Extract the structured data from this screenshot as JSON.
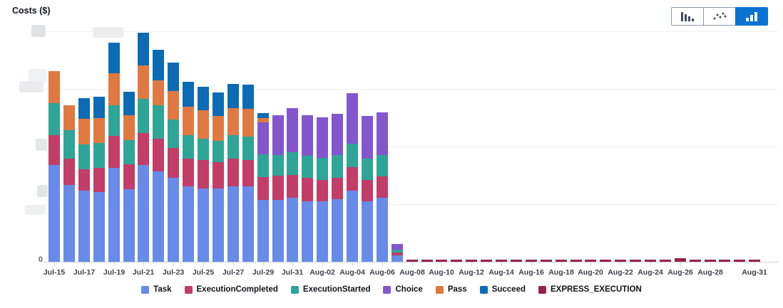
{
  "header": {
    "title": "Costs ($)"
  },
  "toolbar": {
    "active_color": "#0972d3",
    "buttons": [
      {
        "icon": "bar-chart-icon",
        "active": false
      },
      {
        "icon": "scatter-chart-icon",
        "active": false
      },
      {
        "icon": "stacked-bar-chart-icon",
        "active": true
      }
    ]
  },
  "y_axis": {
    "visible_tick_label": "0",
    "note": "all other y-axis tick labels are blurred/redacted in the screenshot"
  },
  "chart_data": {
    "type": "bar",
    "stacked": true,
    "title": "Costs ($)",
    "xlabel": "",
    "ylabel": "Costs ($)",
    "grid": "horizontal gridlines on, y tick labels redacted except 0",
    "legend_position": "bottom",
    "units": "pixel heights measured from screenshot (1 gridline interval = 81 px); absolute $ values not readable because y-axis labels are blurred",
    "categories": [
      "Jul-15",
      "Jul-16",
      "Jul-17",
      "Jul-18",
      "Jul-19",
      "Jul-20",
      "Jul-21",
      "Jul-22",
      "Jul-23",
      "Jul-24",
      "Jul-25",
      "Jul-26",
      "Jul-27",
      "Jul-28",
      "Jul-29",
      "Jul-30",
      "Jul-31",
      "Aug-01",
      "Aug-02",
      "Aug-03",
      "Aug-04",
      "Aug-05",
      "Aug-06",
      "Aug-07",
      "Aug-08",
      "Aug-09",
      "Aug-10",
      "Aug-11",
      "Aug-12",
      "Aug-13",
      "Aug-14",
      "Aug-15",
      "Aug-16",
      "Aug-17",
      "Aug-18",
      "Aug-19",
      "Aug-20",
      "Aug-21",
      "Aug-22",
      "Aug-23",
      "Aug-24",
      "Aug-25",
      "Aug-26",
      "Aug-27",
      "Aug-28",
      "Aug-29",
      "Aug-30",
      "Aug-31"
    ],
    "x_tick_labels": [
      "Jul-15",
      "Jul-17",
      "Jul-19",
      "Jul-21",
      "Jul-23",
      "Jul-25",
      "Jul-27",
      "Jul-29",
      "Jul-31",
      "Aug-02",
      "Aug-04",
      "Aug-06",
      "Aug-08",
      "Aug-10",
      "Aug-12",
      "Aug-14",
      "Aug-16",
      "Aug-18",
      "Aug-20",
      "Aug-22",
      "Aug-24",
      "Aug-26",
      "Aug-28",
      "Aug-31"
    ],
    "series": [
      {
        "name": "Task",
        "color": "#688AE8",
        "values": [
          136,
          108,
          100,
          98,
          132,
          102,
          136,
          127,
          118,
          106,
          103,
          103,
          106,
          106,
          87,
          87,
          90,
          85,
          85,
          88,
          100,
          85,
          90,
          9,
          0,
          0,
          0,
          0,
          0,
          0,
          0,
          0,
          0,
          0,
          0,
          0,
          0,
          0,
          0,
          0,
          0,
          0,
          0,
          0,
          0,
          0,
          0,
          0
        ]
      },
      {
        "name": "ExecutionCompleted",
        "color": "#C33D69",
        "values": [
          42,
          37,
          30,
          34,
          45,
          35,
          45,
          46,
          42,
          39,
          40,
          37,
          39,
          37,
          32,
          34,
          32,
          33,
          30,
          30,
          33,
          30,
          30,
          4,
          0,
          0,
          0,
          0,
          0,
          0,
          0,
          0,
          0,
          0,
          0,
          0,
          0,
          0,
          0,
          0,
          0,
          0,
          0,
          0,
          0,
          0,
          0,
          0
        ]
      },
      {
        "name": "ExecutionStarted",
        "color": "#2EA597",
        "values": [
          45,
          40,
          35,
          35,
          43,
          34,
          48,
          47,
          40,
          33,
          30,
          30,
          33,
          33,
          32,
          29,
          32,
          31,
          31,
          32,
          33,
          30,
          30,
          4,
          0,
          0,
          0,
          0,
          0,
          0,
          0,
          0,
          0,
          0,
          0,
          0,
          0,
          0,
          0,
          0,
          0,
          0,
          0,
          0,
          0,
          0,
          0,
          0
        ]
      },
      {
        "name": "Choice",
        "color": "#8456CE",
        "values": [
          0,
          0,
          0,
          0,
          0,
          0,
          0,
          0,
          0,
          0,
          0,
          0,
          0,
          0,
          45,
          56,
          62,
          57,
          57,
          58,
          71,
          60,
          60,
          8,
          0,
          0,
          0,
          0,
          0,
          0,
          0,
          0,
          0,
          0,
          0,
          0,
          0,
          0,
          0,
          0,
          0,
          0,
          0,
          0,
          0,
          0,
          0,
          0
        ]
      },
      {
        "name": "Pass",
        "color": "#E07941",
        "values": [
          45,
          35,
          36,
          35,
          45,
          35,
          47,
          35,
          40,
          40,
          40,
          35,
          38,
          39,
          6,
          0,
          0,
          0,
          0,
          0,
          0,
          0,
          0,
          0,
          0,
          0,
          0,
          0,
          0,
          0,
          0,
          0,
          0,
          0,
          0,
          0,
          0,
          0,
          0,
          0,
          0,
          0,
          0,
          0,
          0,
          0,
          0,
          0
        ]
      },
      {
        "name": "Succeed",
        "color": "#0B6BB4",
        "values": [
          0,
          0,
          29,
          30,
          43,
          33,
          46,
          43,
          40,
          35,
          33,
          33,
          34,
          34,
          7,
          0,
          0,
          0,
          0,
          0,
          0,
          0,
          0,
          0,
          0,
          0,
          0,
          0,
          0,
          0,
          0,
          0,
          0,
          0,
          0,
          0,
          0,
          0,
          0,
          0,
          0,
          0,
          0,
          0,
          0,
          0,
          0,
          0
        ]
      },
      {
        "name": "EXPRESS_EXECUTION",
        "color": "#97234D",
        "values": [
          0,
          0,
          0,
          0,
          0,
          0,
          0,
          0,
          0,
          0,
          0,
          0,
          0,
          0,
          0,
          0,
          0,
          0,
          0,
          0,
          0,
          0,
          0,
          0,
          3,
          3,
          3,
          3,
          3,
          3,
          3,
          3,
          3,
          3,
          3,
          3,
          3,
          3,
          3,
          3,
          3,
          3,
          5,
          3,
          3,
          3,
          3,
          3
        ]
      }
    ]
  },
  "legend": {
    "items": [
      {
        "label": "Task",
        "color": "#688AE8"
      },
      {
        "label": "ExecutionCompleted",
        "color": "#C33D69"
      },
      {
        "label": "ExecutionStarted",
        "color": "#2EA597"
      },
      {
        "label": "Choice",
        "color": "#8456CE"
      },
      {
        "label": "Pass",
        "color": "#E07941"
      },
      {
        "label": "Succeed",
        "color": "#0B6BB4"
      },
      {
        "label": "EXPRESS_EXECUTION",
        "color": "#97234D"
      }
    ]
  }
}
